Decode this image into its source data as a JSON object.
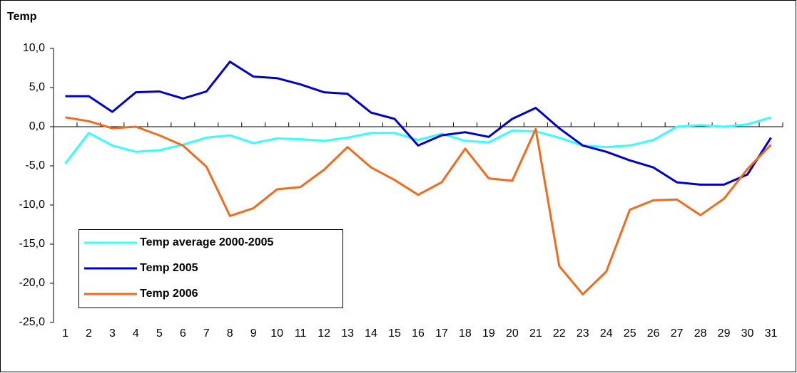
{
  "chart_data": {
    "type": "line",
    "title": "Temp",
    "categories": [
      "1",
      "2",
      "3",
      "4",
      "5",
      "6",
      "7",
      "8",
      "9",
      "10",
      "11",
      "12",
      "13",
      "14",
      "15",
      "16",
      "17",
      "18",
      "19",
      "20",
      "21",
      "22",
      "23",
      "24",
      "25",
      "26",
      "27",
      "28",
      "29",
      "30",
      "31"
    ],
    "series": [
      {
        "name": "Temp average 2000-2005",
        "color": "#33ffff",
        "values": [
          -4.7,
          -0.8,
          -2.4,
          -3.2,
          -3.0,
          -2.3,
          -1.4,
          -1.1,
          -2.1,
          -1.5,
          -1.6,
          -1.8,
          -1.4,
          -0.8,
          -0.8,
          -1.7,
          -0.9,
          -1.8,
          -2.0,
          -0.5,
          -0.6,
          -1.4,
          -2.4,
          -2.6,
          -2.4,
          -1.7,
          0.0,
          0.2,
          0.0,
          0.3,
          1.2
        ]
      },
      {
        "name": "Temp 2005",
        "color": "#0000cc",
        "values": [
          3.9,
          3.9,
          1.9,
          4.4,
          4.5,
          3.6,
          4.5,
          8.3,
          6.4,
          6.2,
          5.4,
          4.4,
          4.2,
          1.8,
          1.0,
          -2.4,
          -1.1,
          -0.7,
          -1.3,
          1.0,
          2.4,
          -0.2,
          -2.4,
          -3.2,
          -4.3,
          -5.2,
          -7.1,
          -7.4,
          -7.4,
          -6.1,
          -1.4
        ]
      },
      {
        "name": "Temp 2006",
        "color": "#f26a1b",
        "values": [
          1.2,
          0.7,
          -0.2,
          0.0,
          -1.1,
          -2.4,
          -5.1,
          -11.4,
          -10.4,
          -8.0,
          -7.7,
          -5.5,
          -2.6,
          -5.2,
          -6.8,
          -8.7,
          -7.1,
          -2.8,
          -6.6,
          -6.9,
          -0.3,
          -17.8,
          -21.4,
          -18.5,
          -10.6,
          -9.4,
          -9.3,
          -11.3,
          -9.2,
          -5.4,
          -2.3
        ]
      }
    ],
    "ylim": [
      -25,
      10
    ],
    "yticks": [
      {
        "value": -25,
        "label": "-25,0"
      },
      {
        "value": -20,
        "label": "-20,0"
      },
      {
        "value": -15,
        "label": "-15,0"
      },
      {
        "value": -10,
        "label": "-10,0"
      },
      {
        "value": -5,
        "label": "-5,0"
      },
      {
        "value": 0,
        "label": "0,0"
      },
      {
        "value": 5,
        "label": "5,0"
      },
      {
        "value": 10,
        "label": "10,0"
      }
    ]
  }
}
